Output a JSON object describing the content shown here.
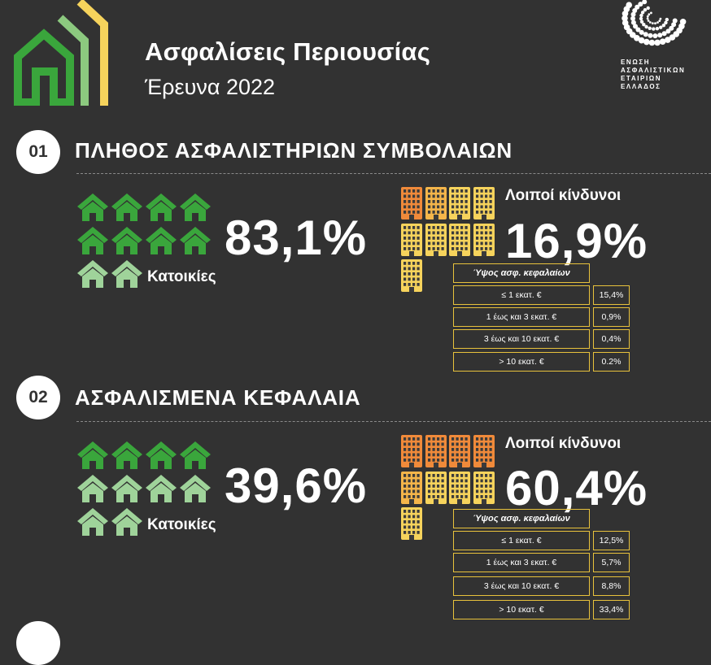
{
  "header": {
    "title": "Ασφαλίσεις Περιουσίας",
    "subtitle": "Έρευνα 2022",
    "org_lines": [
      "ΕΝΩΣΗ",
      "ΑΣΦΑΛΙΣΤΙΚΩΝ",
      "ΕΤΑΙΡΙΩΝ",
      "ΕΛΛΑΔΟΣ"
    ]
  },
  "colors": {
    "background": "#323232",
    "house_dark": "#3aa63c",
    "house_light": "#9fd39a",
    "building_orange": "#f08a3a",
    "building_amber": "#f4b54a",
    "building_yellow": "#f6d35c",
    "box_border": "#e8c23c"
  },
  "sections": [
    {
      "number": "01",
      "title": "ΠΛΗΘΟΣ ΑΣΦΑΛΙΣΤΗΡΙΩΝ ΣΥΜΒΟΛΑΙΩΝ",
      "homes_pct": "83,1%",
      "homes_label": "Κατοικίες",
      "homes_icons": {
        "dark": 8,
        "light": 2
      },
      "buildings_icons": {
        "orange": 1,
        "amber": 1,
        "yellow": 7
      },
      "other_label": "Λοιποί κίνδυνοι",
      "other_pct": "16,9%",
      "table_header": "Ύψος ασφ. κεφαλαίων",
      "rows": [
        {
          "range": "≤ 1 εκατ. €",
          "value": "15,4%"
        },
        {
          "range": "1 έως και 3 εκατ. €",
          "value": "0,9%"
        },
        {
          "range": "3 έως και 10 εκατ. €",
          "value": "0,4%"
        },
        {
          "range": "> 10 εκατ. €",
          "value": "0.2%"
        }
      ]
    },
    {
      "number": "02",
      "title": "ΑΣΦΑΛΙΣΜΕΝΑ ΚΕΦΑΛΑΙΑ",
      "homes_pct": "39,6%",
      "homes_label": "Κατοικίες",
      "homes_icons": {
        "dark": 4,
        "light": 6
      },
      "buildings_icons": {
        "orange": 4,
        "amber": 1,
        "yellow": 4
      },
      "other_label": "Λοιποί κίνδυνοι",
      "other_pct": "60,4%",
      "table_header": "Ύψος ασφ. κεφαλαίων",
      "rows": [
        {
          "range": "≤ 1 εκατ. €",
          "value": "12,5%"
        },
        {
          "range": "1 έως και 3 εκατ. €",
          "value": "5,7%"
        },
        {
          "range": "3 έως και 10 εκατ. €",
          "value": "8,8%"
        },
        {
          "range": "> 10 εκατ. €",
          "value": "33,4%"
        }
      ]
    }
  ]
}
